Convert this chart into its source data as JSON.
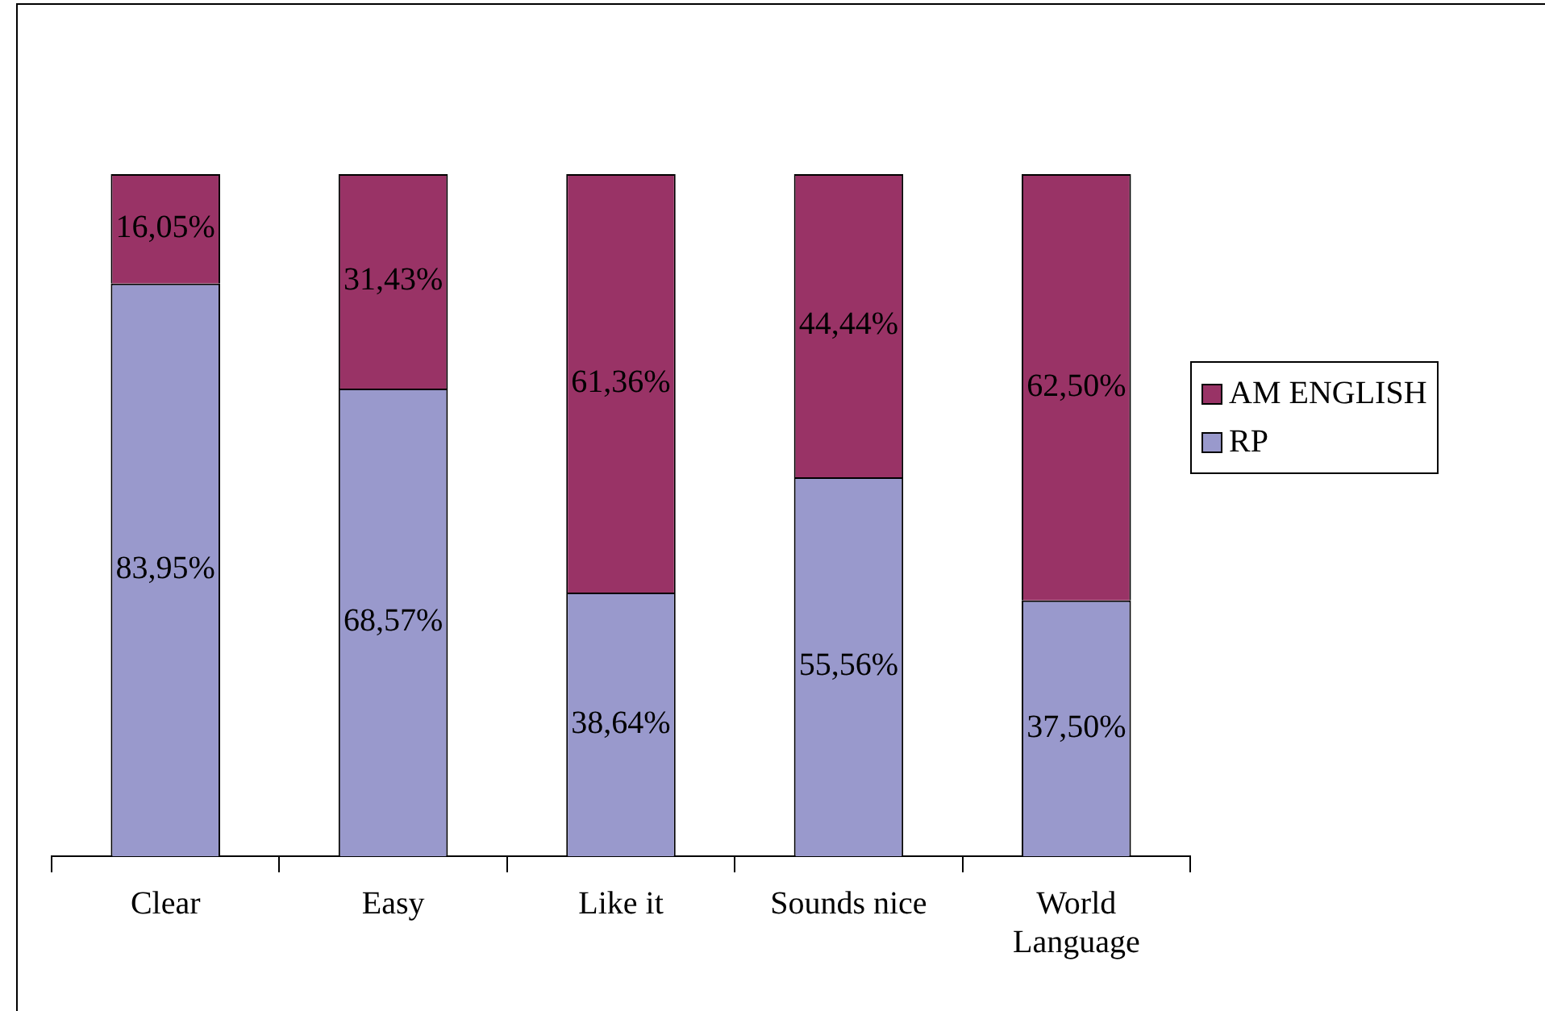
{
  "chart_data": {
    "type": "bar",
    "stacked": true,
    "legend": "right",
    "categories": [
      "Clear",
      "Easy",
      "Like it",
      "Sounds nice",
      "World Language"
    ],
    "series": [
      {
        "name": "RP",
        "color": "#9999cc",
        "values": [
          83.95,
          68.57,
          38.64,
          55.56,
          37.5
        ],
        "value_labels": [
          "83,95%",
          "68,57%",
          "38,64%",
          "55,56%",
          "37,50%"
        ]
      },
      {
        "name": "AM ENGLISH",
        "color": "#993366",
        "values": [
          16.05,
          31.43,
          61.36,
          44.44,
          62.5
        ],
        "value_labels": [
          "16,05%",
          "31,43%",
          "61,36%",
          "44,44%",
          "62,50%"
        ]
      }
    ]
  }
}
